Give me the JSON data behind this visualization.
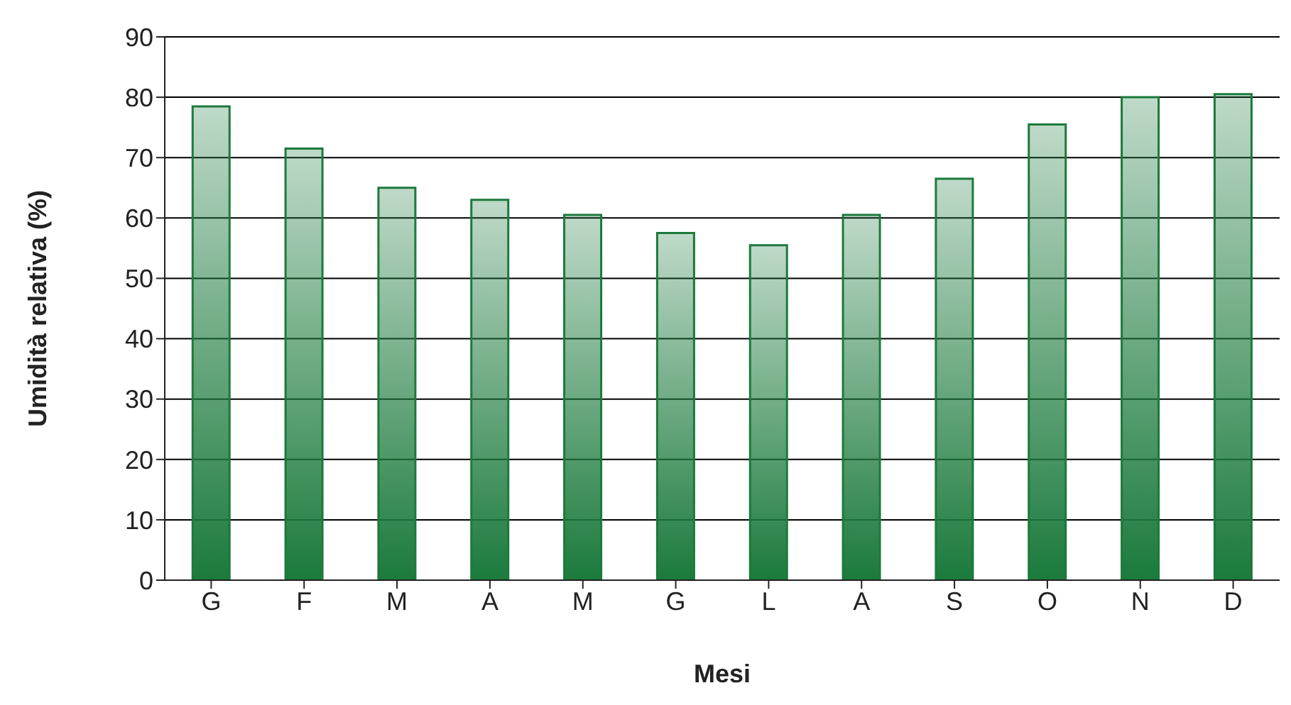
{
  "chart_data": {
    "type": "bar",
    "xlabel": "Mesi",
    "ylabel": "Umidità relativa (%)",
    "categories": [
      "G",
      "F",
      "M",
      "A",
      "M",
      "G",
      "L",
      "A",
      "S",
      "O",
      "N",
      "D"
    ],
    "values": [
      78.5,
      71.5,
      65,
      63,
      60.5,
      57.5,
      55.5,
      60.5,
      66.5,
      75.5,
      80,
      80.5
    ],
    "color": "#1b7a3c",
    "ylim": [
      0,
      90
    ],
    "yticks": [
      0,
      10,
      20,
      30,
      40,
      50,
      60,
      70,
      80,
      90
    ],
    "grid": "y"
  }
}
